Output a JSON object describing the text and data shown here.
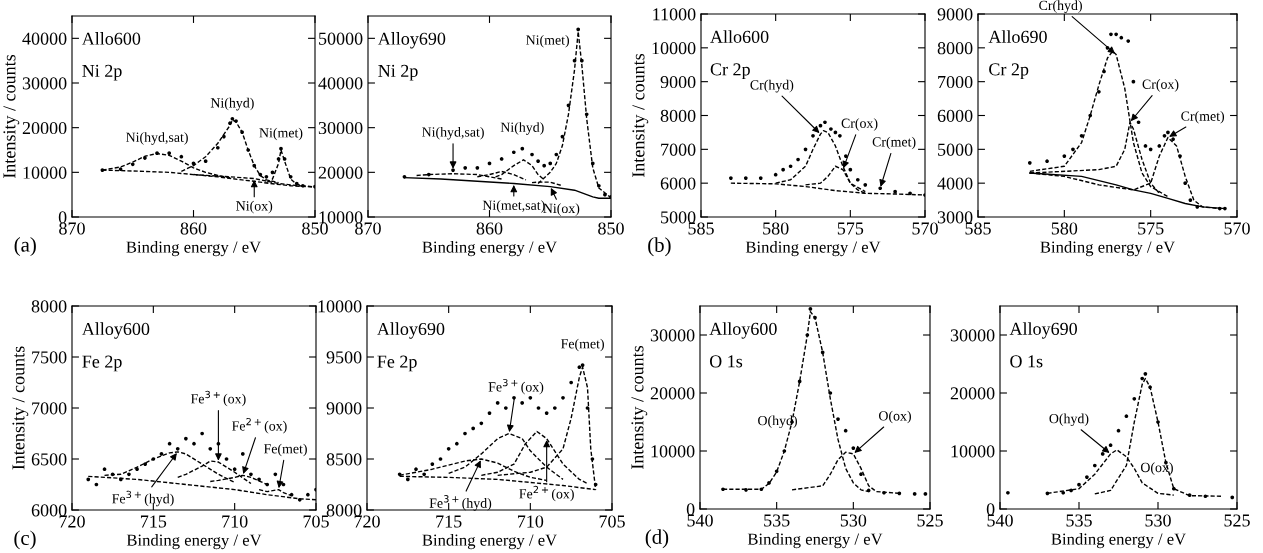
{
  "chart_data": [
    {
      "type": "scatter",
      "title": "Allo600",
      "subtitle": "Ni 2p",
      "xlabel": "Binding energy / eV",
      "ylabel": "Intensity / counts",
      "xlim": [
        870,
        850
      ],
      "xticks": [
        870,
        860,
        850
      ],
      "ylim": [
        0,
        45000
      ],
      "yticks": [
        0,
        10000,
        20000,
        30000,
        40000
      ],
      "line_style": "dashed",
      "series": [
        {
          "marker": "circle",
          "color": "#000000",
          "x": [
            867.5,
            866,
            865,
            864,
            863,
            862,
            861,
            860,
            859,
            858,
            857.5,
            857,
            856.8,
            856.5,
            856,
            855.5,
            855,
            854.5,
            854,
            853.5,
            853,
            852.8,
            852.5,
            852,
            851.5,
            851,
            850
          ],
          "values": [
            10500,
            10700,
            11800,
            13200,
            14300,
            14300,
            13500,
            12000,
            12500,
            15500,
            18000,
            21000,
            22000,
            21500,
            19000,
            15000,
            11500,
            9500,
            9000,
            10000,
            13000,
            15300,
            13000,
            9000,
            7500,
            7000,
            6800
          ]
        },
        {
          "type": "line",
          "color": "#000000",
          "x": [
            867.5,
            865,
            862,
            860,
            858,
            856,
            855,
            854,
            852,
            850
          ],
          "values": [
            10500,
            10300,
            10000,
            9500,
            9000,
            8300,
            8000,
            7600,
            7000,
            6700
          ]
        },
        {
          "type": "line",
          "color": "#000000",
          "x": [
            867.5,
            866,
            865,
            864,
            863,
            862,
            861,
            860,
            859,
            858,
            857
          ],
          "values": [
            10500,
            11200,
            12300,
            13600,
            14200,
            13800,
            12500,
            11000,
            10000,
            9300,
            8800
          ]
        },
        {
          "type": "line",
          "color": "#000000",
          "x": [
            861,
            860,
            859,
            858,
            857,
            856.8,
            856.5,
            856,
            855.5,
            855,
            854.5,
            854,
            853
          ],
          "values": [
            10200,
            11500,
            13500,
            16500,
            20500,
            21700,
            21300,
            19000,
            15000,
            11500,
            9300,
            8300,
            7700
          ]
        },
        {
          "type": "line",
          "color": "#000000",
          "x": [
            860,
            857,
            855,
            853,
            851
          ],
          "values": [
            9500,
            9000,
            8600,
            7500,
            6900
          ]
        },
        {
          "type": "line",
          "color": "#000000",
          "x": [
            854,
            853.5,
            853,
            852.8,
            852.5,
            852,
            851.5,
            851,
            850
          ],
          "values": [
            7700,
            8500,
            12000,
            15000,
            12500,
            8500,
            7300,
            7000,
            6700
          ]
        }
      ],
      "annotations": [
        {
          "text": "Ni(hyd,sat)",
          "x": 863,
          "y": 14300
        },
        {
          "text": "Ni(hyd)",
          "x": 856.8,
          "y": 22000
        },
        {
          "text": "Ni(met)",
          "x": 852.8,
          "y": 15300
        },
        {
          "text": "Ni(ox)",
          "x": 855,
          "y": 8600
        },
        "(a)"
      ]
    },
    {
      "type": "scatter",
      "title": "Alloy690",
      "subtitle": "Ni 2p",
      "xlabel": "Binding energy / eV",
      "xlim": [
        870,
        850
      ],
      "xticks": [
        870,
        860,
        850
      ],
      "ylim": [
        10000,
        55000
      ],
      "yticks": [
        10000,
        20000,
        30000,
        40000,
        50000
      ],
      "line_style": "dashed",
      "series": [
        {
          "marker": "circle",
          "color": "#000000",
          "x": [
            867,
            865,
            863,
            862,
            861,
            860,
            859,
            858,
            857.3,
            856.5,
            856,
            855.5,
            855,
            854.5,
            854,
            853.5,
            853,
            852.7,
            852.4,
            852,
            851.5,
            851,
            850.5,
            850
          ],
          "values": [
            19000,
            19500,
            20500,
            21000,
            21000,
            22000,
            23000,
            24500,
            25300,
            24000,
            22500,
            21500,
            22000,
            24000,
            28000,
            35000,
            45000,
            52000,
            45000,
            33000,
            22000,
            17000,
            15000,
            14500
          ]
        },
        {
          "type": "line",
          "line_style": "solid",
          "color": "#000000",
          "x": [
            867,
            864,
            861,
            858,
            855,
            853,
            852,
            851.5,
            851,
            850
          ],
          "values": [
            18800,
            18500,
            18000,
            17500,
            16800,
            16000,
            15000,
            14500,
            14200,
            14200
          ]
        },
        {
          "type": "line",
          "color": "#000000",
          "x": [
            866,
            865,
            863,
            861,
            859
          ],
          "values": [
            19300,
            19500,
            19700,
            19500,
            18500
          ]
        },
        {
          "type": "line",
          "color": "#000000",
          "x": [
            861,
            860,
            859,
            858,
            857
          ],
          "values": [
            19000,
            19500,
            20200,
            19500,
            18300
          ]
        },
        {
          "type": "line",
          "color": "#000000",
          "x": [
            859.5,
            859,
            858,
            857.2,
            856.5,
            856,
            855.5
          ],
          "values": [
            19000,
            19500,
            21500,
            22800,
            21500,
            19500,
            18300
          ]
        },
        {
          "type": "line",
          "color": "#000000",
          "x": [
            856.5,
            856,
            855,
            854
          ],
          "values": [
            17700,
            17800,
            17800,
            17000
          ]
        },
        {
          "type": "line",
          "color": "#000000",
          "x": [
            856,
            855,
            854.5,
            854,
            853.5,
            853,
            852.7,
            852.4,
            852,
            851.5,
            851,
            850
          ],
          "values": [
            17500,
            20000,
            22000,
            26000,
            33000,
            43000,
            51500,
            44000,
            32000,
            21000,
            16500,
            14300
          ]
        }
      ],
      "annotations": [
        {
          "text": "Ni(met)",
          "x": 852.7,
          "y": 52000
        },
        {
          "text": "Ni(hyd,sat)",
          "x": 863,
          "y": 20500
        },
        {
          "text": "Ni(hyd)",
          "x": 857.3,
          "y": 25300
        },
        {
          "text": "Ni(met,sat)",
          "x": 858,
          "y": 17500
        },
        {
          "text": "Ni(ox)",
          "x": 855,
          "y": 16800
        }
      ]
    },
    {
      "type": "scatter",
      "title": "Allo600",
      "subtitle": "Cr 2p",
      "xlabel": "Binding energy / eV",
      "ylabel": "Intensity / counts",
      "xlim": [
        585,
        570
      ],
      "xticks": [
        585,
        580,
        575,
        570
      ],
      "ylim": [
        5000,
        11000
      ],
      "yticks": [
        5000,
        6000,
        7000,
        8000,
        9000,
        10000,
        11000
      ],
      "line_style": "dashed",
      "series": [
        {
          "marker": "circle",
          "color": "#000000",
          "x": [
            583,
            582,
            581,
            580,
            579.5,
            579,
            578.5,
            578,
            577.5,
            577,
            576.7,
            576.3,
            576,
            575.7,
            575.3,
            575,
            574.5,
            574,
            573,
            572,
            571,
            570
          ],
          "values": [
            6150,
            6150,
            6150,
            6250,
            6400,
            6500,
            6700,
            7000,
            7400,
            7700,
            7800,
            7600,
            7500,
            7400,
            6800,
            6400,
            6100,
            5950,
            5850,
            5750,
            5700,
            5650
          ]
        },
        {
          "type": "line",
          "color": "#000000",
          "x": [
            583,
            580,
            578,
            576,
            574,
            572,
            570
          ],
          "values": [
            6000,
            5980,
            5900,
            5780,
            5700,
            5680,
            5650
          ]
        },
        {
          "type": "line",
          "color": "#000000",
          "x": [
            580,
            579,
            578,
            577.5,
            577,
            576.8,
            576.5,
            576,
            575.5,
            575,
            574
          ],
          "values": [
            6000,
            6100,
            6500,
            7000,
            7450,
            7550,
            7500,
            7100,
            6500,
            6000,
            5750
          ]
        },
        {
          "type": "line",
          "color": "#000000",
          "x": [
            578,
            577,
            576.5,
            576,
            575.5,
            575,
            574.5,
            574
          ],
          "values": [
            5950,
            6000,
            6200,
            6500,
            6400,
            6000,
            5800,
            5700
          ]
        }
      ],
      "annotations": [
        {
          "text": "Cr(hyd)",
          "x": 577,
          "y": 7450
        },
        {
          "text": "Cr(ox)",
          "x": 575.5,
          "y": 6400
        },
        {
          "text": "Cr(met)",
          "x": 573,
          "y": 5850
        },
        "(b)"
      ]
    },
    {
      "type": "scatter",
      "title": "Allo690",
      "subtitle": "Cr 2p",
      "xlabel": "Binding energy / eV",
      "xlim": [
        585,
        570
      ],
      "xticks": [
        585,
        580,
        575,
        570
      ],
      "ylim": [
        3000,
        9000
      ],
      "yticks": [
        3000,
        4000,
        5000,
        6000,
        7000,
        8000,
        9000
      ],
      "line_style": "dashed",
      "series": [
        {
          "marker": "circle",
          "color": "#000000",
          "x": [
            582,
            581,
            580,
            579.5,
            579,
            578.5,
            578,
            577.7,
            577.5,
            577.3,
            577,
            576.7,
            576.3,
            576,
            575.7,
            575.3,
            575,
            574.5,
            574.2,
            574,
            573.7,
            573.3,
            573,
            572.7,
            572.3,
            571,
            570.7
          ],
          "values": [
            4600,
            4650,
            4800,
            5000,
            5400,
            6000,
            6700,
            7300,
            8000,
            8400,
            8400,
            8300,
            8200,
            7000,
            5800,
            5100,
            5000,
            5100,
            5400,
            5500,
            5300,
            4800,
            4000,
            3500,
            3300,
            3250,
            3250
          ]
        },
        {
          "type": "line",
          "line_style": "solid",
          "color": "#000000",
          "x": [
            582,
            579,
            577,
            576,
            575,
            574,
            573,
            572,
            570.7
          ],
          "values": [
            4300,
            4200,
            3950,
            3800,
            3700,
            3550,
            3400,
            3300,
            3250
          ]
        },
        {
          "type": "line",
          "color": "#000000",
          "x": [
            582,
            580,
            579,
            578.5,
            578,
            577.5,
            577.2,
            577,
            576.5,
            576,
            575.5,
            575,
            574
          ],
          "values": [
            4350,
            4500,
            5200,
            6000,
            6900,
            7700,
            7900,
            7800,
            6800,
            5200,
            4300,
            3900,
            3600
          ]
        },
        {
          "type": "line",
          "color": "#000000",
          "x": [
            582,
            578,
            577,
            576.5,
            576.2,
            576,
            575.5,
            575,
            574.5
          ],
          "values": [
            4300,
            4400,
            4500,
            5000,
            5800,
            5600,
            4700,
            4000,
            3700
          ]
        },
        {
          "type": "line",
          "color": "#000000",
          "x": [
            582,
            580,
            578,
            576,
            575,
            574.5,
            574,
            573.5,
            573,
            572.5,
            572,
            571
          ],
          "values": [
            4300,
            4200,
            3950,
            3800,
            4000,
            4800,
            5350,
            5100,
            4200,
            3500,
            3300,
            3250
          ]
        }
      ],
      "annotations": [
        {
          "text": "Cr(hyd)",
          "x": 577,
          "y": 7800
        },
        {
          "text": "Cr(ox)",
          "x": 576.2,
          "y": 5800
        },
        {
          "text": "Cr(met)",
          "x": 574,
          "y": 5350
        }
      ]
    },
    {
      "type": "scatter",
      "title": "Alloy600",
      "subtitle": "Fe 2p",
      "xlabel": "Binding energy / eV",
      "ylabel": "Intensity / counts",
      "xlim": [
        720,
        705
      ],
      "xticks": [
        720,
        715,
        710,
        705
      ],
      "ylim": [
        6000,
        8000
      ],
      "yticks": [
        6000,
        6500,
        7000,
        7500,
        8000
      ],
      "line_style": "dashed",
      "series": [
        {
          "marker": "circle",
          "color": "#000000",
          "x": [
            719,
            718.5,
            718,
            717.5,
            717,
            716.5,
            716,
            715.5,
            715,
            714.5,
            714,
            713.5,
            713,
            712.5,
            712,
            711.5,
            711,
            710.5,
            710,
            709.5,
            709,
            708.5,
            708,
            707.5,
            707,
            706.5,
            706,
            705.5,
            705
          ],
          "values": [
            6300,
            6250,
            6400,
            6350,
            6300,
            6350,
            6400,
            6450,
            6500,
            6550,
            6650,
            6600,
            6700,
            6650,
            6750,
            6600,
            6650,
            6500,
            6400,
            6550,
            6350,
            6300,
            6250,
            6350,
            6250,
            6150,
            6100,
            6150,
            6200
          ]
        },
        {
          "type": "line",
          "color": "#000000",
          "x": [
            719,
            716,
            713,
            710,
            708,
            706,
            705
          ],
          "values": [
            6330,
            6300,
            6250,
            6200,
            6150,
            6110,
            6100
          ]
        },
        {
          "type": "line",
          "color": "#000000",
          "x": [
            718,
            717,
            716,
            715,
            714,
            713.5,
            713,
            712,
            711,
            710
          ],
          "values": [
            6340,
            6350,
            6420,
            6500,
            6560,
            6570,
            6550,
            6450,
            6350,
            6270
          ]
        },
        {
          "type": "line",
          "color": "#000000",
          "x": [
            713.5,
            713,
            712,
            711.5,
            711,
            710,
            709
          ],
          "values": [
            6320,
            6350,
            6430,
            6480,
            6470,
            6370,
            6260
          ]
        },
        {
          "type": "line",
          "color": "#000000",
          "x": [
            711.5,
            711,
            710,
            709.5,
            709,
            708
          ],
          "values": [
            6280,
            6290,
            6320,
            6340,
            6320,
            6250
          ]
        },
        {
          "type": "line",
          "color": "#000000",
          "x": [
            708.5,
            708,
            707.3,
            707,
            706.5
          ],
          "values": [
            6200,
            6180,
            6200,
            6170,
            6140
          ]
        }
      ],
      "annotations": [
        {
          "text": "Fe$^{3+}$(ox)",
          "x": 711,
          "y": 6470
        },
        {
          "text": "Fe$^{2+}$(ox)",
          "x": 709.5,
          "y": 6340
        },
        {
          "text": "Fe(met)",
          "x": 707.3,
          "y": 6200
        },
        {
          "text": "Fe$^{3+}$(hyd)",
          "x": 713.5,
          "y": 6570
        },
        "(c)"
      ]
    },
    {
      "type": "scatter",
      "title": "Alloy690",
      "subtitle": "Fe 2p",
      "xlabel": "Binding energy / eV",
      "xlim": [
        720,
        705
      ],
      "xticks": [
        720,
        715,
        710,
        705
      ],
      "ylim": [
        8000,
        10000
      ],
      "yticks": [
        8000,
        8500,
        9000,
        9500,
        10000
      ],
      "line_style": "dashed",
      "series": [
        {
          "marker": "circle",
          "color": "#000000",
          "x": [
            718,
            717.5,
            717,
            716.5,
            716,
            715.5,
            715,
            714.5,
            714,
            713.5,
            713,
            712.5,
            712,
            711.5,
            711,
            710.5,
            710,
            709.5,
            709,
            708.5,
            708,
            707.5,
            707,
            706.8,
            706.5,
            706.2,
            706
          ],
          "values": [
            8350,
            8300,
            8400,
            8350,
            8450,
            8500,
            8600,
            8650,
            8750,
            8800,
            8850,
            8950,
            9050,
            9000,
            9100,
            9050,
            9100,
            9000,
            8950,
            9000,
            9100,
            9250,
            9400,
            9420,
            9000,
            8500,
            8250
          ]
        },
        {
          "type": "line",
          "color": "#000000",
          "x": [
            718,
            715,
            712,
            710,
            708,
            706
          ],
          "values": [
            8330,
            8320,
            8300,
            8270,
            8240,
            8200
          ]
        },
        {
          "type": "line",
          "color": "#000000",
          "x": [
            718,
            716,
            714,
            713,
            712,
            711,
            710,
            709
          ],
          "values": [
            8340,
            8400,
            8480,
            8500,
            8460,
            8380,
            8320,
            8290
          ]
        },
        {
          "type": "line",
          "color": "#000000",
          "x": [
            715,
            714,
            713,
            712,
            711.3,
            710.5,
            710,
            709,
            708
          ],
          "values": [
            8360,
            8420,
            8550,
            8700,
            8750,
            8700,
            8580,
            8420,
            8300
          ]
        },
        {
          "type": "line",
          "color": "#000000",
          "x": [
            713,
            712,
            711,
            710.3,
            709.6,
            709,
            708,
            707,
            706.5
          ],
          "values": [
            8340,
            8370,
            8450,
            8650,
            8770,
            8700,
            8450,
            8300,
            8260
          ]
        },
        {
          "type": "line",
          "color": "#000000",
          "x": [
            712,
            710,
            709,
            708,
            707.5,
            707,
            706.8,
            706.5,
            706.3,
            706
          ],
          "values": [
            8340,
            8370,
            8420,
            8600,
            8900,
            9300,
            9400,
            9200,
            8600,
            8200
          ]
        }
      ],
      "annotations": [
        {
          "text": "Fe$^{3+}$(ox)",
          "x": 711.3,
          "y": 8750
        },
        {
          "text": "Fe$^{3+}$(hyd)",
          "x": 713,
          "y": 8500
        },
        {
          "text": "Fe$^{2+}$(ox)",
          "x": 709,
          "y": 8700
        },
        {
          "text": "Fe(met)",
          "x": 706.8,
          "y": 9420
        }
      ]
    },
    {
      "type": "scatter",
      "title": "Alloy600",
      "subtitle": "O 1s",
      "xlabel": "Binding energy / eV",
      "ylabel": "Intensity / counts",
      "xlim": [
        540,
        525
      ],
      "xticks": [
        540,
        535,
        530,
        525
      ],
      "ylim": [
        0,
        35000
      ],
      "yticks": [
        0,
        10000,
        20000,
        30000
      ],
      "line_style": "dashed",
      "series": [
        {
          "marker": "circle",
          "color": "#000000",
          "x": [
            538.5,
            537,
            536,
            535.5,
            535,
            534.5,
            534,
            533.5,
            533,
            532.8,
            532.5,
            532,
            531.5,
            531,
            530.5,
            530,
            529.5,
            529,
            528,
            527,
            526,
            525.3
          ],
          "values": [
            3400,
            3300,
            3400,
            4500,
            6500,
            10000,
            15000,
            22000,
            30000,
            34500,
            33000,
            27000,
            20000,
            15500,
            13500,
            10500,
            6000,
            3200,
            2800,
            2700,
            2600,
            2600
          ]
        },
        {
          "type": "line",
          "color": "#000000",
          "x": [
            538.5,
            536,
            535.5,
            535,
            534.5,
            534,
            533.5,
            533,
            532.8,
            532.5,
            532,
            531.5,
            531,
            530.5,
            530,
            529.5,
            529
          ],
          "values": [
            3400,
            3400,
            4400,
            6400,
            10000,
            15000,
            22000,
            30000,
            34000,
            33000,
            27000,
            19000,
            12000,
            7000,
            4500,
            3300,
            3000
          ]
        },
        {
          "type": "line",
          "color": "#000000",
          "x": [
            534,
            532,
            531.5,
            531,
            530.5,
            530,
            529.5,
            529,
            528.5,
            527
          ],
          "values": [
            3300,
            4000,
            6000,
            8500,
            9800,
            9500,
            7000,
            4000,
            3000,
            2700
          ]
        }
      ],
      "annotations": [
        {
          "text": "O(hyd)",
          "x": 531.5,
          "y": 19000
        },
        {
          "text": "O(ox)",
          "x": 530,
          "y": 9500
        },
        "(d)"
      ]
    },
    {
      "type": "scatter",
      "title": "Alloy690",
      "subtitle": "O 1s",
      "xlabel": "Binding energy / eV",
      "xlim": [
        540,
        525
      ],
      "xticks": [
        540,
        535,
        530,
        525
      ],
      "ylim": [
        0,
        35000
      ],
      "yticks": [
        0,
        10000,
        20000,
        30000
      ],
      "line_style": "dashed",
      "series": [
        {
          "marker": "circle",
          "color": "#000000",
          "x": [
            539.5,
            537,
            536,
            535.5,
            535,
            534.5,
            534,
            533.5,
            533,
            532.5,
            532,
            531.5,
            531,
            530.8,
            530.5,
            530,
            529.5,
            529,
            528,
            527,
            525.3
          ],
          "values": [
            2800,
            2700,
            2800,
            3200,
            4200,
            5500,
            7500,
            9500,
            11000,
            13500,
            16000,
            19000,
            22500,
            23300,
            21000,
            15000,
            8000,
            3500,
            2400,
            2200,
            2000
          ]
        },
        {
          "type": "line",
          "color": "#000000",
          "x": [
            537,
            535,
            534,
            533,
            532.6,
            532,
            531.5,
            531,
            530,
            529
          ],
          "values": [
            2700,
            3500,
            6000,
            9500,
            10200,
            9000,
            7000,
            4500,
            2700,
            2400
          ]
        },
        {
          "type": "line",
          "color": "#000000",
          "x": [
            534,
            533,
            532,
            531.5,
            531,
            530.8,
            530.5,
            530,
            529.5,
            529,
            528,
            526
          ],
          "values": [
            2600,
            3200,
            7500,
            15000,
            21500,
            22500,
            21000,
            15000,
            8000,
            3500,
            2300,
            2200
          ]
        }
      ],
      "annotations": [
        {
          "text": "O(hyd)",
          "x": 533,
          "y": 9500
        },
        {
          "text": "O(ox)",
          "x": 532,
          "y": 9000
        }
      ]
    }
  ]
}
